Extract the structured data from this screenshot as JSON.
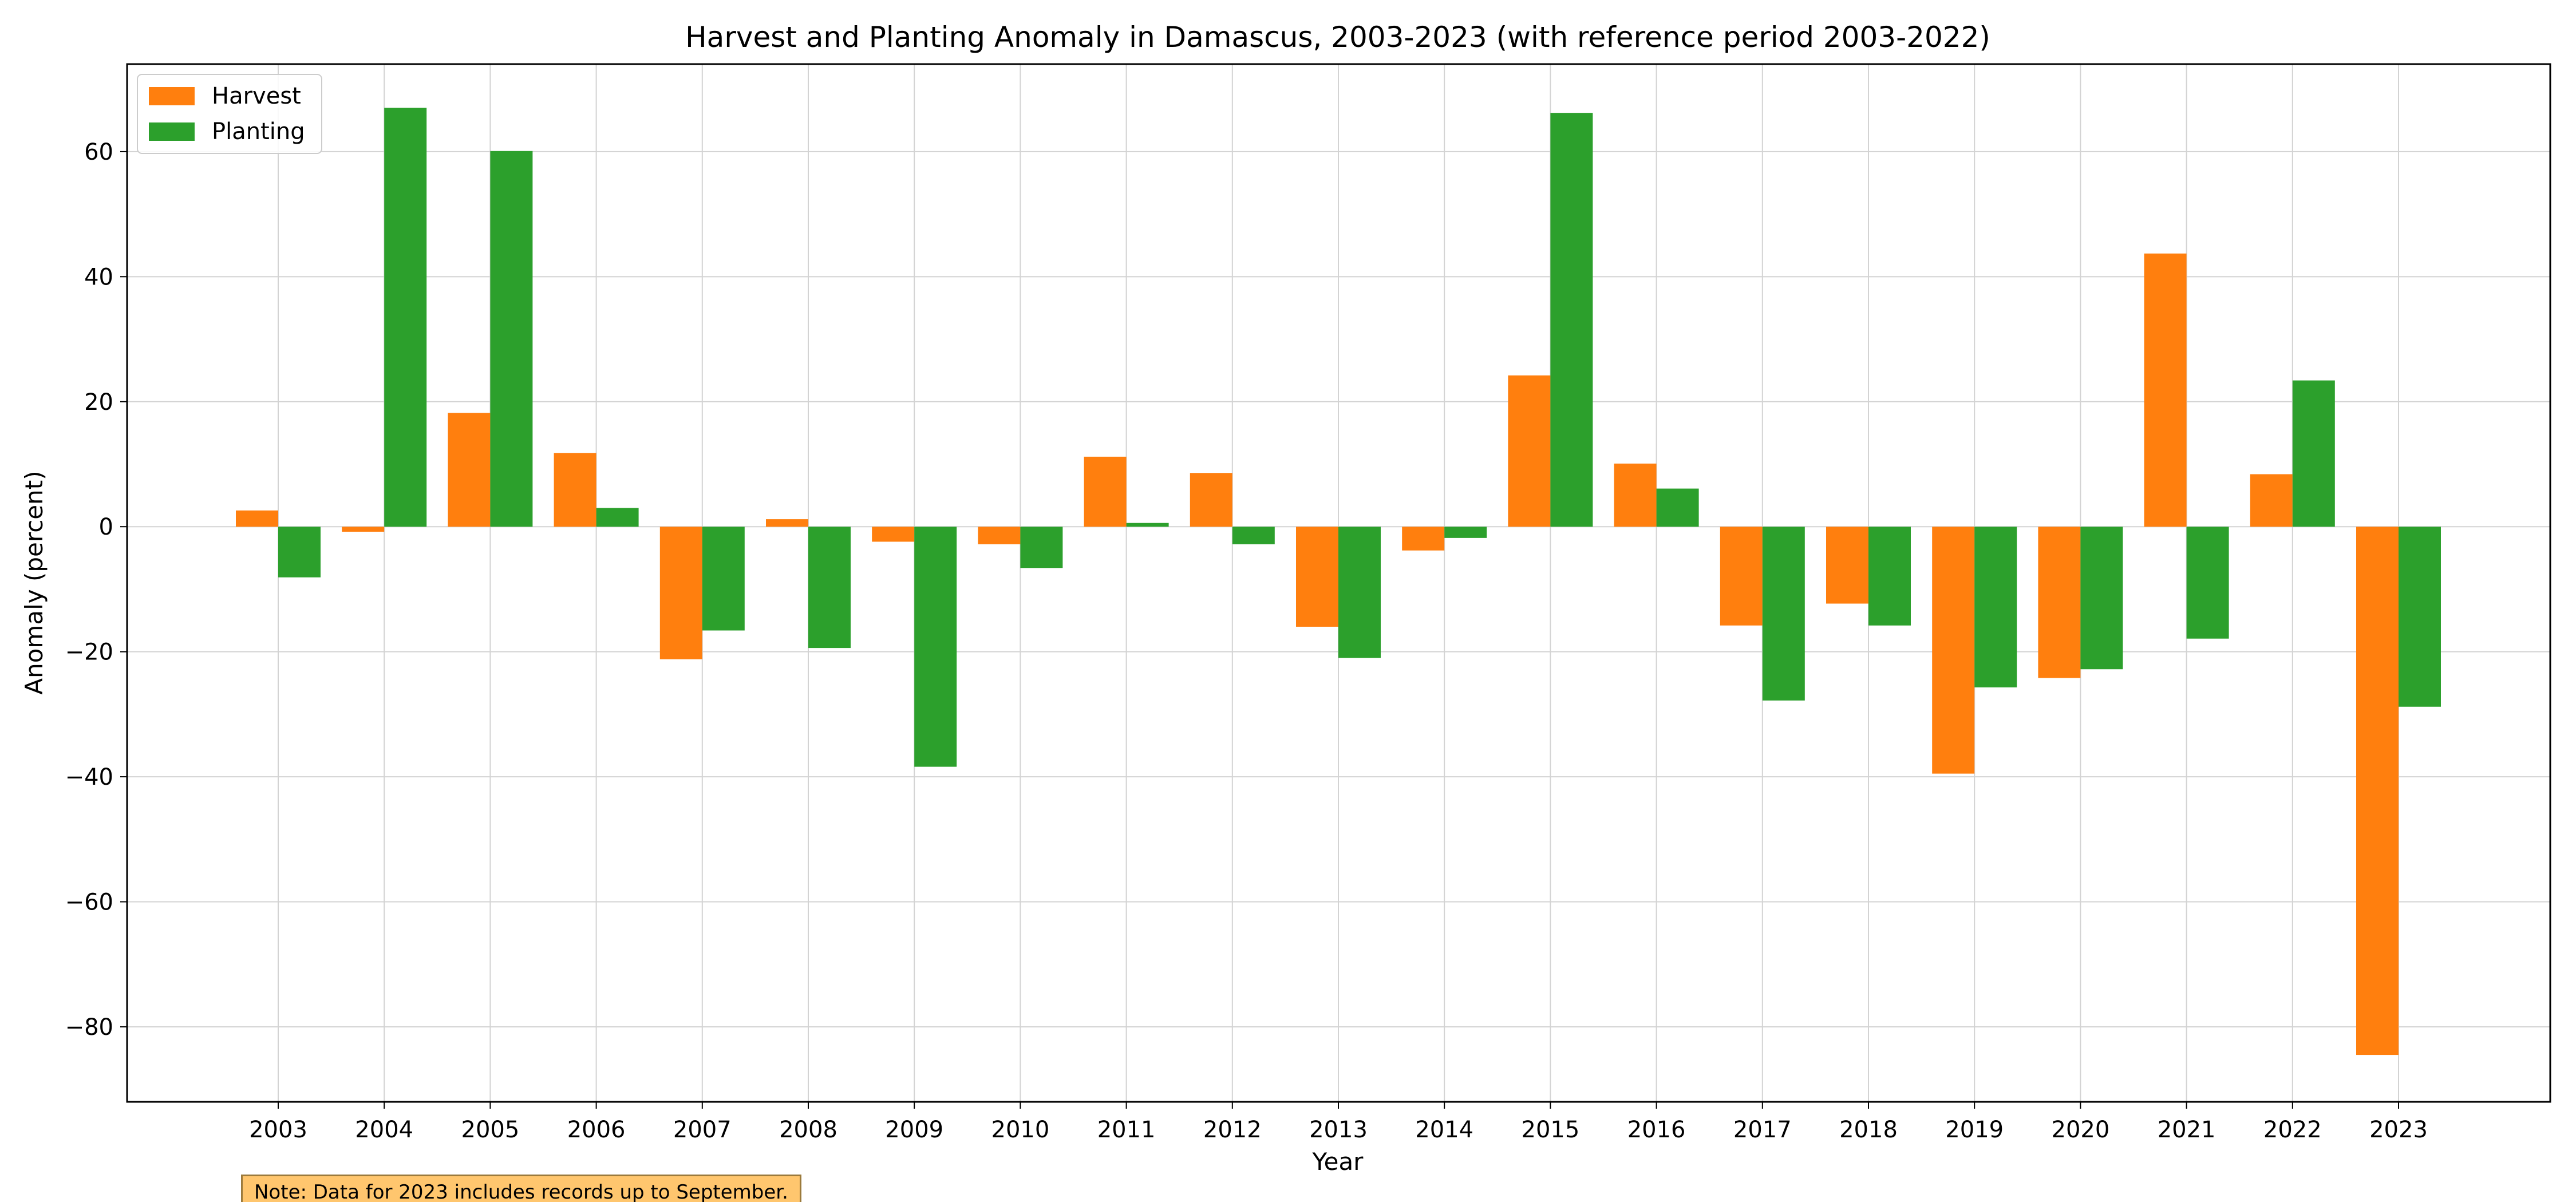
{
  "chart_data": {
    "type": "bar",
    "title": "Harvest and Planting Anomaly in Damascus, 2003-2023 (with reference period 2003-2022)",
    "xlabel": "Year",
    "ylabel": "Anomaly (percent)",
    "categories": [
      "2003",
      "2004",
      "2005",
      "2006",
      "2007",
      "2008",
      "2009",
      "2010",
      "2011",
      "2012",
      "2013",
      "2014",
      "2015",
      "2016",
      "2017",
      "2018",
      "2019",
      "2020",
      "2021",
      "2022",
      "2023"
    ],
    "series": [
      {
        "name": "Harvest",
        "color": "#ff7f0e",
        "values": [
          2.6,
          -0.8,
          18.2,
          11.8,
          -21.2,
          1.2,
          -2.4,
          -2.8,
          11.2,
          8.6,
          -16.0,
          -3.8,
          24.2,
          10.1,
          -15.8,
          -12.3,
          -39.5,
          -24.2,
          43.7,
          8.4,
          -84.5
        ]
      },
      {
        "name": "Planting",
        "color": "#2ca02c",
        "values": [
          -8.1,
          67.0,
          60.1,
          3.0,
          -16.6,
          -19.4,
          -38.4,
          -6.6,
          0.6,
          -2.8,
          -21.0,
          -1.8,
          66.2,
          6.1,
          -27.8,
          -15.8,
          -25.7,
          -22.8,
          -17.9,
          23.4,
          -28.8
        ]
      }
    ],
    "ylim": [
      -92,
      74
    ],
    "yticks": [
      -80,
      -60,
      -40,
      -20,
      0,
      20,
      40,
      60
    ],
    "ytick_labels": [
      "−80",
      "−60",
      "−40",
      "−20",
      "0",
      "20",
      "40",
      "60"
    ],
    "grid": true,
    "legend_position": "top-left",
    "note": "Note: Data for 2023 includes records up to September."
  }
}
